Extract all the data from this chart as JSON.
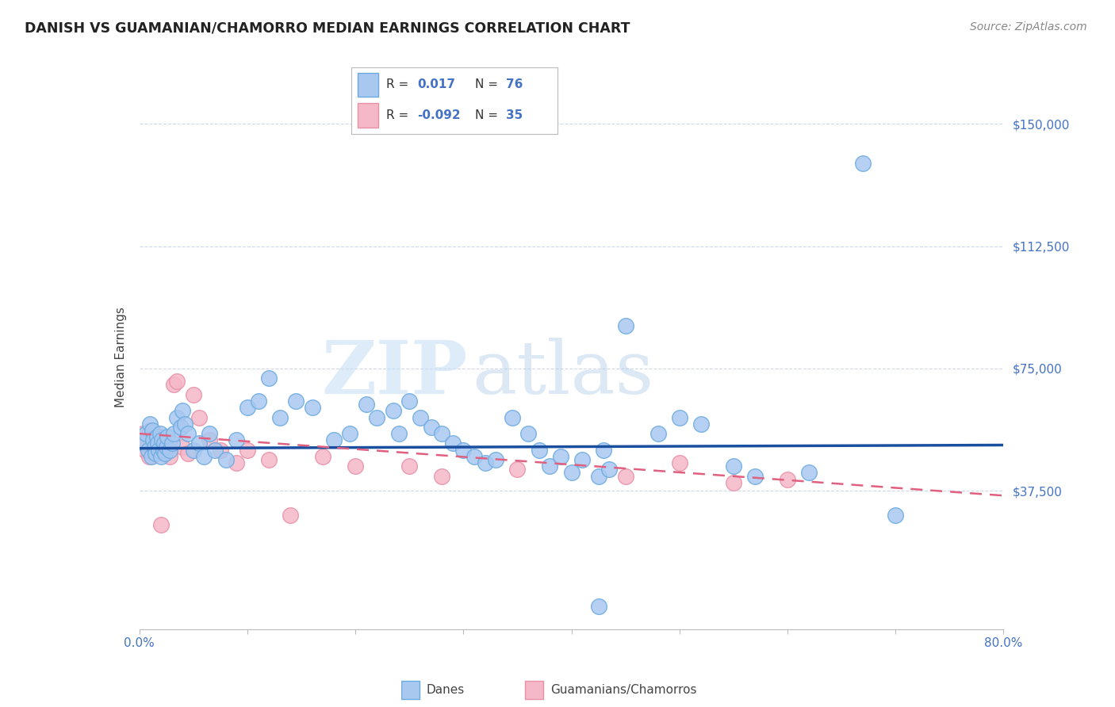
{
  "title": "DANISH VS GUAMANIAN/CHAMORRO MEDIAN EARNINGS CORRELATION CHART",
  "source": "Source: ZipAtlas.com",
  "ylabel": "Median Earnings",
  "yticks": [
    0,
    37500,
    75000,
    112500,
    150000
  ],
  "ytick_labels": [
    "",
    "$37,500",
    "$75,000",
    "$112,500",
    "$150,000"
  ],
  "xmin": 0.0,
  "xmax": 80.0,
  "ymin": -5000,
  "ymax": 162000,
  "danes_color": "#a8c8f0",
  "danes_edge_color": "#6aaae0",
  "guam_color": "#f5b8c8",
  "guam_edge_color": "#e890a8",
  "trend_danes_color": "#1a4fa0",
  "trend_guam_color": "#e06080",
  "legend_label_danes": "Danes",
  "legend_label_guam": "Guamanians/Chamorros",
  "watermark_zip": "ZIP",
  "watermark_atlas": "atlas",
  "danes_x": [
    0.4,
    0.6,
    0.8,
    1.0,
    1.1,
    1.2,
    1.3,
    1.4,
    1.5,
    1.6,
    1.7,
    1.8,
    1.9,
    2.0,
    2.1,
    2.2,
    2.3,
    2.4,
    2.5,
    2.6,
    2.8,
    3.0,
    3.2,
    3.5,
    3.8,
    4.0,
    4.2,
    4.5,
    5.0,
    5.5,
    6.0,
    6.5,
    7.0,
    8.0,
    9.0,
    10.0,
    11.0,
    12.0,
    13.0,
    14.5,
    16.0,
    18.0,
    19.5,
    21.0,
    22.0,
    23.5,
    24.0,
    25.0,
    26.0,
    27.0,
    28.0,
    29.0,
    30.0,
    31.0,
    32.0,
    33.0,
    34.5,
    36.0,
    37.0,
    38.0,
    39.0,
    40.0,
    41.0,
    42.5,
    43.0,
    45.0,
    48.0,
    50.0,
    52.0,
    55.0,
    57.0,
    62.0,
    67.0,
    70.0,
    42.5,
    43.5
  ],
  "danes_y": [
    52000,
    55000,
    50000,
    58000,
    48000,
    56000,
    53000,
    51000,
    49000,
    54000,
    52000,
    50000,
    55000,
    48000,
    53000,
    50000,
    52000,
    49000,
    51000,
    54000,
    50000,
    52000,
    55000,
    60000,
    57000,
    62000,
    58000,
    55000,
    50000,
    52000,
    48000,
    55000,
    50000,
    47000,
    53000,
    63000,
    65000,
    72000,
    60000,
    65000,
    63000,
    53000,
    55000,
    64000,
    60000,
    62000,
    55000,
    65000,
    60000,
    57000,
    55000,
    52000,
    50000,
    48000,
    46000,
    47000,
    60000,
    55000,
    50000,
    45000,
    48000,
    43000,
    47000,
    42000,
    50000,
    88000,
    55000,
    60000,
    58000,
    45000,
    42000,
    43000,
    138000,
    30000,
    2000,
    44000
  ],
  "guam_x": [
    0.3,
    0.5,
    0.7,
    0.9,
    1.0,
    1.1,
    1.2,
    1.4,
    1.6,
    1.8,
    2.0,
    2.2,
    2.5,
    2.8,
    3.2,
    3.5,
    4.0,
    4.5,
    5.0,
    5.5,
    6.5,
    7.5,
    9.0,
    10.0,
    12.0,
    14.0,
    17.0,
    20.0,
    25.0,
    28.0,
    35.0,
    45.0,
    50.0,
    55.0,
    60.0
  ],
  "guam_y": [
    55000,
    50000,
    52000,
    48000,
    56000,
    53000,
    51000,
    55000,
    52000,
    50000,
    54000,
    52000,
    50000,
    48000,
    70000,
    71000,
    51000,
    49000,
    67000,
    60000,
    53000,
    50000,
    46000,
    50000,
    47000,
    30000,
    48000,
    45000,
    45000,
    42000,
    44000,
    42000,
    46000,
    40000,
    41000
  ],
  "guam_low_x": 2.0,
  "guam_low_y": 27000,
  "danes_trend_x0": 0,
  "danes_trend_x1": 80,
  "danes_trend_y0": 50500,
  "danes_trend_y1": 51500,
  "guam_trend_x0": 0,
  "guam_trend_x1": 80,
  "guam_trend_y0": 55000,
  "guam_trend_y1": 36000
}
